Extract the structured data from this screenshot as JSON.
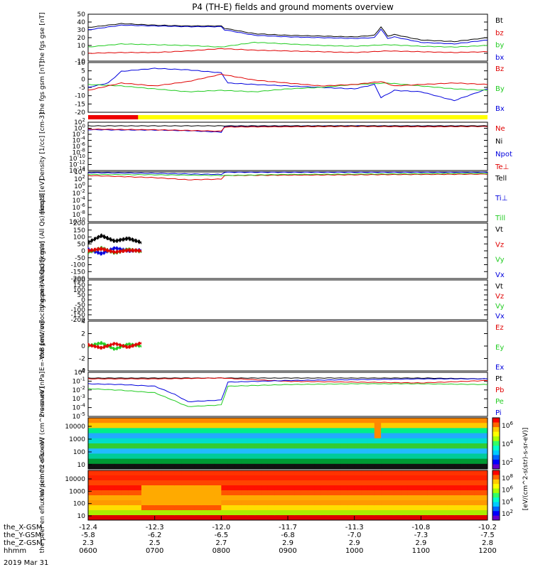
{
  "title": "P4 (TH-E) fields and ground moments overview",
  "date_label": "2019 Mar 31",
  "colors": {
    "black": "#000000",
    "red": "#e00000",
    "green": "#22cc22",
    "blue": "#0000dd",
    "yellow": "#ffff00",
    "red_bar": "#ee0000"
  },
  "footer": {
    "row_labels": [
      "the_X-GSM",
      "the_Y-GSM",
      "the_Z-GSM",
      "hhmm"
    ],
    "columns": [
      [
        "-12.4",
        "-5.8",
        "2.3",
        "0600"
      ],
      [
        "-12.3",
        "-6.2",
        "2.5",
        "0700"
      ],
      [
        "-12.0",
        "-6.5",
        "2.7",
        "0800"
      ],
      [
        "-11.7",
        "-6.8",
        "2.9",
        "0900"
      ],
      [
        "-11.3",
        "-7.0",
        "2.9",
        "1000"
      ],
      [
        "-10.8",
        "-7.3",
        "2.9",
        "1100"
      ],
      [
        "-10.2",
        "-7.5",
        "2.8",
        "1200"
      ]
    ]
  },
  "chart_data": [
    {
      "type": "line",
      "panel": "fgs_gse_magnitude",
      "ylabel": "the fgs gse [nT]",
      "yticks": [
        "50",
        "40",
        "30",
        "20",
        "10",
        "0",
        "-10"
      ],
      "ylim": [
        -10,
        50
      ],
      "legend": [
        {
          "name": "Bt",
          "color": "black"
        },
        {
          "name": "bz",
          "color": "red"
        },
        {
          "name": "by",
          "color": "green"
        },
        {
          "name": "bx",
          "color": "blue"
        }
      ],
      "series": [
        {
          "name": "Bt",
          "color": "black",
          "x": [
            6.0,
            6.5,
            7.0,
            7.5,
            8.0,
            8.05,
            8.5,
            9.0,
            9.5,
            10.0,
            10.3,
            10.4,
            10.5,
            10.6,
            11.0,
            11.5,
            12.0
          ],
          "y": [
            33,
            38,
            36,
            35,
            35,
            32,
            25,
            23,
            22,
            21,
            23,
            34,
            22,
            24,
            17,
            15,
            20
          ]
        },
        {
          "name": "bx",
          "color": "blue",
          "x": [
            6.0,
            6.5,
            7.0,
            7.5,
            8.0,
            8.05,
            8.5,
            9.0,
            9.5,
            10.0,
            10.3,
            10.4,
            10.5,
            10.6,
            11.0,
            11.5,
            12.0
          ],
          "y": [
            30,
            36,
            35,
            34,
            34,
            30,
            23,
            21,
            20,
            19,
            20,
            31,
            19,
            21,
            14,
            12,
            17
          ]
        },
        {
          "name": "by",
          "color": "green",
          "x": [
            6.0,
            6.5,
            7.0,
            7.5,
            8.0,
            8.5,
            9.0,
            9.5,
            10.0,
            10.5,
            11.0,
            11.5,
            12.0
          ],
          "y": [
            8,
            12,
            11,
            10,
            8,
            14,
            12,
            10,
            9,
            11,
            9,
            8,
            10
          ]
        },
        {
          "name": "bz",
          "color": "red",
          "x": [
            6.0,
            6.5,
            7.0,
            7.5,
            8.0,
            8.5,
            9.0,
            9.5,
            10.0,
            10.5,
            11.0,
            11.5,
            12.0
          ],
          "y": [
            0,
            1,
            1,
            3,
            6,
            4,
            3,
            2,
            1,
            3,
            2,
            1,
            2
          ]
        }
      ]
    },
    {
      "type": "line",
      "panel": "fgs_gsm",
      "ylabel": "the fgs gsm [nT]",
      "yticks": [
        "10",
        "5",
        "0",
        "-5",
        "-10",
        "-15",
        "-20"
      ],
      "ylim": [
        -22,
        12
      ],
      "legend": [
        {
          "name": "Bz",
          "color": "red"
        },
        {
          "name": "By",
          "color": "green"
        },
        {
          "name": "Bx",
          "color": "blue"
        }
      ],
      "series": [
        {
          "name": "Bx",
          "color": "blue",
          "x": [
            6.0,
            6.3,
            6.5,
            7.0,
            7.5,
            8.0,
            8.1,
            8.5,
            9.0,
            9.5,
            10.0,
            10.3,
            10.4,
            10.6,
            11.0,
            11.5,
            12.0
          ],
          "y": [
            -5,
            -2,
            6,
            8,
            7,
            5,
            -2,
            -3,
            -4,
            -5,
            -6,
            -3,
            -12,
            -7,
            -8,
            -14,
            -6
          ]
        },
        {
          "name": "By",
          "color": "green",
          "x": [
            6.0,
            6.5,
            7.0,
            7.5,
            8.0,
            8.5,
            9.0,
            9.5,
            10.0,
            10.5,
            11.0,
            11.5,
            12.0
          ],
          "y": [
            -3,
            -4,
            -6,
            -8,
            -7,
            -8,
            -6,
            -5,
            -3,
            -2,
            -4,
            -6,
            -7
          ]
        },
        {
          "name": "Bz",
          "color": "red",
          "x": [
            6.0,
            6.5,
            7.0,
            7.5,
            8.0,
            8.5,
            9.0,
            9.5,
            10.0,
            10.4,
            10.6,
            11.0,
            11.5,
            12.0
          ],
          "y": [
            -7,
            -2,
            -4,
            -1,
            4,
            0,
            -2,
            -4,
            -3,
            -1,
            -4,
            -3,
            -2,
            -3
          ]
        }
      ]
    },
    {
      "type": "line",
      "panel": "density",
      "ylabel": "Density [1/cc] [cm-3]",
      "yscale": "log",
      "yticks": [
        "10^2",
        "10^0",
        "10^-2",
        "10^-4",
        "10^-6",
        "10^-8",
        "10^-10",
        "10^-12",
        "10^-14"
      ],
      "ylim": [
        -14,
        2
      ],
      "legend": [
        {
          "name": "Ne",
          "color": "red"
        },
        {
          "name": "Ni",
          "color": "black"
        },
        {
          "name": "Npot",
          "color": "blue"
        },
        {
          "name": "Te⊥",
          "color": "red"
        }
      ],
      "series": [
        {
          "name": "Npot",
          "color": "blue",
          "x": [
            6.0,
            7.0,
            7.5,
            8.0,
            8.05,
            9.0,
            10.0,
            11.0,
            12.0
          ],
          "y": [
            -0.5,
            -0.6,
            -0.8,
            -1.3,
            0.6,
            0.7,
            0.8,
            0.7,
            0.7
          ]
        },
        {
          "name": "Ne",
          "color": "red",
          "x": [
            6.0,
            7.0,
            7.5,
            8.0,
            8.05,
            9.0,
            10.0,
            11.0,
            12.0
          ],
          "y": [
            -0.3,
            -0.5,
            -0.7,
            -1.0,
            0.4,
            0.5,
            0.6,
            0.5,
            0.6
          ]
        },
        {
          "name": "Ni",
          "color": "black",
          "x": [
            6.0,
            7.0,
            8.0,
            9.0,
            10.0,
            11.0,
            12.0
          ],
          "y": [
            0.8,
            0.8,
            0.8,
            0.8,
            0.8,
            0.8,
            0.8
          ]
        }
      ]
    },
    {
      "type": "line",
      "panel": "temperature",
      "ylabel": "moqt3 [eV]",
      "yscale": "log",
      "yticks": [
        "10^4",
        "10^2",
        "10^0",
        "10^-2",
        "10^-4",
        "10^-6",
        "10^-8",
        "10^-10"
      ],
      "ylim": [
        -10,
        4
      ],
      "legend": [
        {
          "name": "Tell",
          "color": "black"
        },
        {
          "name": "Ti⊥",
          "color": "blue"
        },
        {
          "name": "Till",
          "color": "green"
        }
      ],
      "series": [
        {
          "name": "Ti⊥",
          "color": "blue",
          "x": [
            6.0,
            7.0,
            8.0,
            8.05,
            9.0,
            10.0,
            11.0,
            12.0
          ],
          "y": [
            3.8,
            3.6,
            3.3,
            3.9,
            3.9,
            3.9,
            3.9,
            3.9
          ]
        },
        {
          "name": "Te⊥",
          "color": "red",
          "x": [
            6.0,
            7.0,
            7.5,
            8.0,
            8.05,
            9.0,
            10.0,
            11.0,
            12.0
          ],
          "y": [
            3.0,
            2.4,
            1.8,
            2.0,
            3.0,
            3.1,
            3.2,
            3.3,
            3.4
          ]
        },
        {
          "name": "Till",
          "color": "green",
          "x": [
            6.0,
            7.0,
            8.0,
            9.0,
            10.0,
            11.0,
            12.0
          ],
          "y": [
            3.3,
            3.2,
            3.0,
            3.3,
            3.4,
            3.5,
            3.6
          ]
        }
      ]
    },
    {
      "type": "line",
      "panel": "peir_velocity",
      "ylabel": "the peir velocity gsm (All Qs) [km/s]",
      "yticks": [
        "200",
        "150",
        "100",
        "50",
        "0",
        "-50",
        "-100",
        "-150",
        "-200"
      ],
      "ylim": [
        -200,
        200
      ],
      "legend": [
        {
          "name": "Vt",
          "color": "black"
        },
        {
          "name": "Vz",
          "color": "red"
        },
        {
          "name": "Vy",
          "color": "green"
        },
        {
          "name": "Vx",
          "color": "blue"
        }
      ],
      "series": [
        {
          "name": "Vt",
          "color": "black",
          "x": [
            6.0,
            6.2,
            6.4,
            6.6,
            6.8
          ],
          "y": [
            60,
            110,
            70,
            90,
            60
          ]
        },
        {
          "name": "Vx",
          "color": "blue",
          "x": [
            6.0,
            6.2,
            6.4,
            6.6,
            6.8
          ],
          "y": [
            10,
            -20,
            20,
            0,
            5
          ]
        },
        {
          "name": "Vy",
          "color": "green",
          "x": [
            6.0,
            6.2,
            6.4,
            6.6,
            6.8
          ],
          "y": [
            -10,
            20,
            -15,
            10,
            -5
          ]
        },
        {
          "name": "Vz",
          "color": "red",
          "x": [
            6.0,
            6.2,
            6.4,
            6.6,
            6.8
          ],
          "y": [
            0,
            15,
            -10,
            5,
            0
          ]
        }
      ]
    },
    {
      "type": "line",
      "panel": "peer_velocity",
      "ylabel": "the peer velocity gsm (All Qs) [km/s]",
      "yticks": [
        "200",
        "150",
        "100",
        "50",
        "0",
        "-50",
        "-100",
        "-150",
        "-200"
      ],
      "ylim": [
        -200,
        200
      ],
      "legend": [
        {
          "name": "Vt",
          "color": "black"
        },
        {
          "name": "Vz",
          "color": "red"
        },
        {
          "name": "Vy",
          "color": "green"
        },
        {
          "name": "Vx",
          "color": "blue"
        }
      ],
      "series": []
    },
    {
      "type": "line",
      "panel": "efield",
      "ylabel": "E=-VxB [mV/m]",
      "yticks": [
        "4",
        "2",
        "0",
        "-2",
        "-4"
      ],
      "ylim": [
        -4,
        4
      ],
      "legend": [
        {
          "name": "Ez",
          "color": "red"
        },
        {
          "name": "Ey",
          "color": "green"
        },
        {
          "name": "Ex",
          "color": "blue"
        }
      ],
      "series": [
        {
          "name": "Ey",
          "color": "green",
          "x": [
            6.0,
            6.2,
            6.4,
            6.6,
            6.8
          ],
          "y": [
            0,
            0.5,
            -0.5,
            0.3,
            0
          ]
        },
        {
          "name": "Ez",
          "color": "red",
          "x": [
            6.0,
            6.2,
            6.4,
            6.6,
            6.8
          ],
          "y": [
            0.2,
            -0.3,
            0.4,
            -0.2,
            0.5
          ]
        }
      ]
    },
    {
      "type": "line",
      "panel": "pressure",
      "ylabel": "Pressure [nPa]",
      "yscale": "log",
      "yticks": [
        "10^0",
        "10^-1",
        "10^-2",
        "10^-3",
        "10^-4",
        "10^-5"
      ],
      "ylim": [
        -5.2,
        0.2
      ],
      "legend": [
        {
          "name": "Pt",
          "color": "black"
        },
        {
          "name": "Pb",
          "color": "red"
        },
        {
          "name": "Pe",
          "color": "green"
        },
        {
          "name": "Pi",
          "color": "blue"
        }
      ],
      "series": [
        {
          "name": "Pt",
          "color": "black",
          "x": [
            6.0,
            7.0,
            8.0,
            9.0,
            10.0,
            11.0,
            12.0
          ],
          "y": [
            -0.5,
            -0.5,
            -0.5,
            -0.5,
            -0.5,
            -0.5,
            -0.6
          ]
        },
        {
          "name": "Pb",
          "color": "red",
          "x": [
            6.0,
            7.0,
            8.0,
            9.0,
            10.0,
            11.0,
            12.0
          ],
          "y": [
            -0.6,
            -0.6,
            -0.5,
            -0.9,
            -1.0,
            -1.1,
            -0.8
          ]
        },
        {
          "name": "Pi",
          "color": "blue",
          "x": [
            6.0,
            6.5,
            7.0,
            7.3,
            7.5,
            8.0,
            8.1,
            9.0,
            10.0,
            11.0,
            12.0
          ],
          "y": [
            -1.2,
            -1.3,
            -1.5,
            -2.5,
            -3.4,
            -3.2,
            -1.0,
            -0.8,
            -0.7,
            -0.6,
            -0.6
          ]
        },
        {
          "name": "Pe",
          "color": "green",
          "x": [
            6.0,
            6.5,
            7.0,
            7.3,
            7.5,
            8.0,
            8.1,
            9.0,
            10.0,
            11.0,
            12.0
          ],
          "y": [
            -1.8,
            -2.0,
            -2.3,
            -3.3,
            -4.0,
            -3.8,
            -1.5,
            -1.3,
            -1.2,
            -1.2,
            -1.3
          ]
        }
      ]
    },
    {
      "type": "heatmap",
      "panel": "peir_en_eflux",
      "ylabel": "the peir en eflux eV (cm^2-s-sr-eV)",
      "yscale": "log",
      "yticks": [
        "10000",
        "1000",
        "100",
        "10"
      ],
      "colorbar_label": "[eV/(cm^2-s(str)-s-sr-eV)]",
      "colorbar_ticks": [
        "10^6",
        "10^4",
        "10^2"
      ]
    },
    {
      "type": "heatmap",
      "panel": "peer_en_eflux",
      "ylabel": "the peer en eflux eV (cm^2-s-sr-eV)",
      "yscale": "log",
      "yticks": [
        "10000",
        "1000",
        "100",
        "10"
      ],
      "colorbar_label": "[eV/(cm^2-s(str)-s-sr-eV)]",
      "colorbar_ticks": [
        "10^8",
        "10^6",
        "10^4",
        "10^2"
      ]
    }
  ]
}
